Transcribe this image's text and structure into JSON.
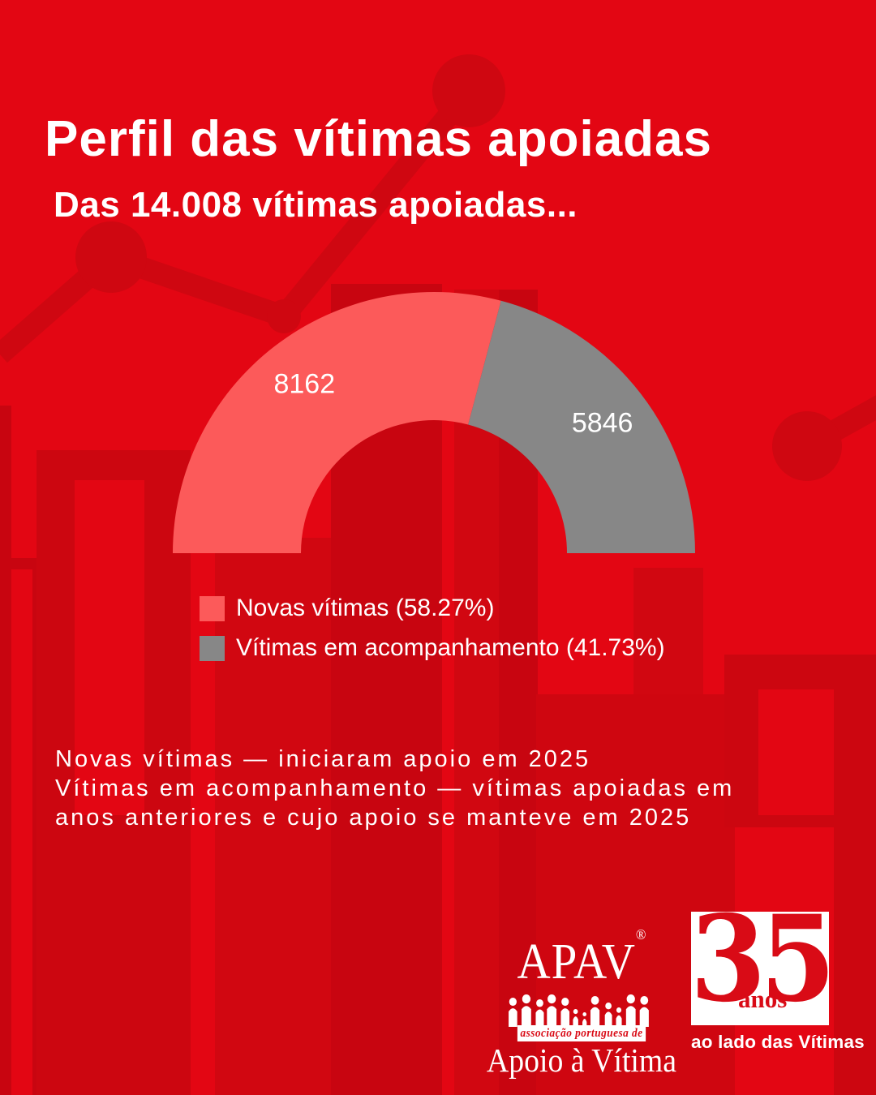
{
  "colors": {
    "background": "#e30613",
    "decoration_dark": "#c80510",
    "decoration_mid": "#d10711",
    "accent_pink": "#fc5a5a",
    "accent_gray": "#878787",
    "text": "#ffffff",
    "logo_red": "#d90b16"
  },
  "header": {
    "title": "Perfil das vítimas apoiadas",
    "subtitle": "Das 14.008 vítimas apoiadas..."
  },
  "chart_data": {
    "type": "pie",
    "variant": "half-donut",
    "title": "Perfil das vítimas apoiadas",
    "subtitle": "Das 14.008 vítimas apoiadas...",
    "total": 14008,
    "series": [
      {
        "name": "Novas vítimas",
        "value": 8162,
        "percent": 58.27,
        "color": "#fc5a5a"
      },
      {
        "name": "Vítimas em acompanhamento",
        "value": 5846,
        "percent": 41.73,
        "color": "#878787"
      }
    ],
    "data_labels": [
      "8162",
      "5846"
    ],
    "legend_position": "bottom-left",
    "grid": false
  },
  "legend": {
    "items": [
      {
        "label": "Novas vítimas (58.27%)",
        "color": "#fc5a5a"
      },
      {
        "label": "Vítimas em acompanhamento (41.73%)",
        "color": "#878787"
      }
    ]
  },
  "notes": {
    "lines": [
      "Novas vítimas — iniciaram apoio em 2025",
      "Vítimas em acompanhamento — vítimas apoiadas em",
      "anos anteriores e cujo apoio se manteve em 2025"
    ]
  },
  "footer": {
    "apav": {
      "acronym": "APAV",
      "registered_mark": "®",
      "band_text": "associação portuguesa de",
      "name": "Apoio à Vítima"
    },
    "anniversary": {
      "number": "35",
      "unit": "anos",
      "tagline": "ao lado das Vítimas"
    }
  }
}
